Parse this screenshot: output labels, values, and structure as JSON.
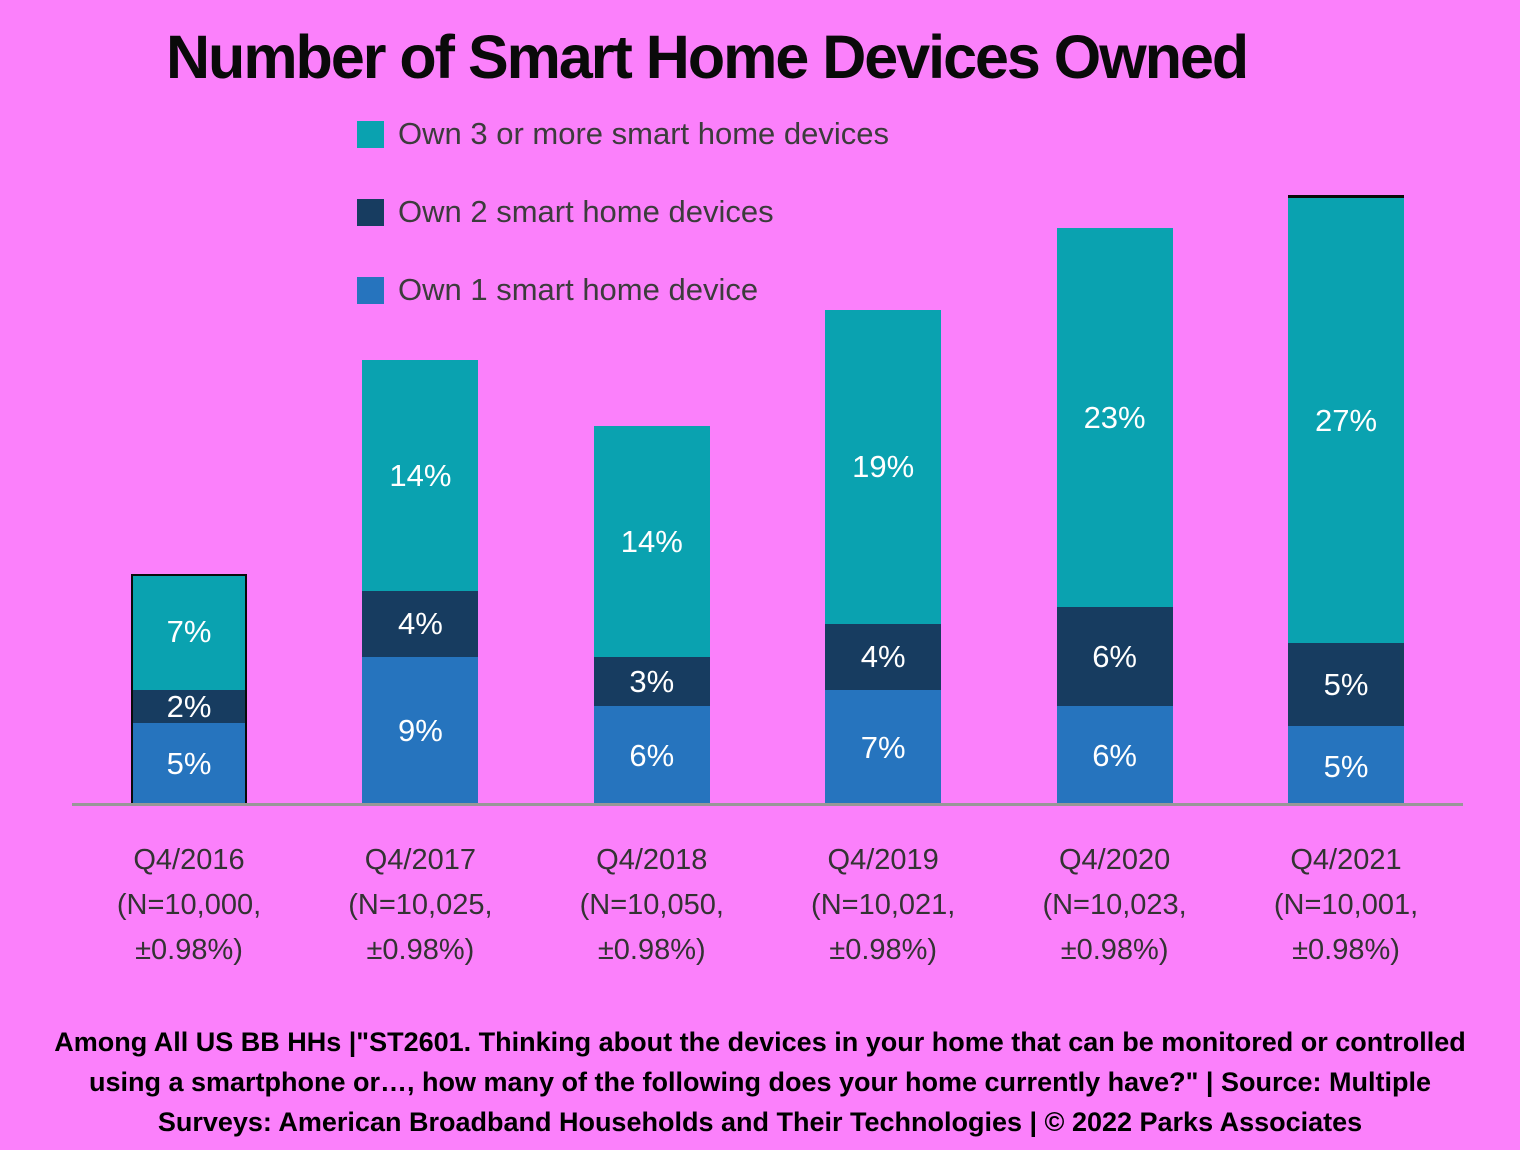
{
  "title": "Number of Smart Home Devices Owned",
  "legend": [
    {
      "label": "Own 3 or more smart home devices",
      "color": "#0AA2B0"
    },
    {
      "label": "Own 2 smart home devices",
      "color": "#173C60"
    },
    {
      "label": "Own 1 smart home device",
      "color": "#2674BE"
    }
  ],
  "chart_data": {
    "type": "bar",
    "stacked": true,
    "unit": "%",
    "title": "Number of Smart Home Devices Owned",
    "xlabel": "",
    "ylabel": "",
    "ylim": [
      0,
      40
    ],
    "grid": false,
    "legend_position": "top-left-vertical",
    "background_color": "#FB80FB",
    "axis_line_color": "#979797",
    "label_color": "#FFFFFF",
    "value_label_format": "{v}%",
    "categories": [
      "Q4/2016",
      "Q4/2017",
      "Q4/2018",
      "Q4/2019",
      "Q4/2020",
      "Q4/2021"
    ],
    "x_tick_lines": [
      [
        "Q4/2016",
        "(N=10,000,",
        "±0.98%)"
      ],
      [
        "Q4/2017",
        "(N=10,025,",
        "±0.98%)"
      ],
      [
        "Q4/2018",
        "(N=10,050,",
        "±0.98%)"
      ],
      [
        "Q4/2019",
        "(N=10,021,",
        "±0.98%)"
      ],
      [
        "Q4/2020",
        "(N=10,023,",
        "±0.98%)"
      ],
      [
        "Q4/2021",
        "(N=10,001,",
        "±0.98%)"
      ]
    ],
    "series": [
      {
        "name": "Own 1 smart home device",
        "color": "#2674BE",
        "values": [
          5,
          9,
          6,
          7,
          6,
          5
        ]
      },
      {
        "name": "Own 2 smart home devices",
        "color": "#173C60",
        "values": [
          2,
          4,
          3,
          4,
          6,
          5
        ]
      },
      {
        "name": "Own 3 or more smart home devices",
        "color": "#0AA2B0",
        "values": [
          7,
          14,
          14,
          19,
          23,
          27
        ]
      }
    ]
  },
  "footer": {
    "lines": [
      "Among All US BB HHs |\"ST2601. Thinking about the devices in your home that can be monitored or controlled",
      "using a smartphone or…, how many of the following does your home currently have?\" | Source: Multiple",
      "Surveys: American Broadband Households and Their Technologies | © 2022 Parks Associates"
    ]
  }
}
